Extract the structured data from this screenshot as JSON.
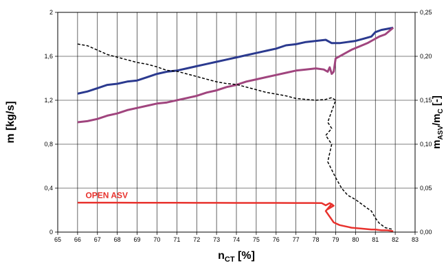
{
  "chart_data": {
    "type": "line",
    "title": "",
    "xlabel": {
      "main": "n",
      "sub": "CT",
      "unit": " [%]"
    },
    "ylabel": "m [kg/s]",
    "y2label": {
      "main": "m",
      "sub": "ASV",
      "mid": "/m",
      "sub2": "C",
      "unit": " [-]"
    },
    "xlim": [
      65,
      83
    ],
    "ylim": [
      0,
      2
    ],
    "y2lim": [
      0,
      0.25
    ],
    "x_ticks": [
      "65",
      "66",
      "67",
      "68",
      "69",
      "70",
      "71",
      "72",
      "73",
      "74",
      "75",
      "76",
      "77",
      "78",
      "79",
      "80",
      "81",
      "82",
      "83"
    ],
    "y_ticks": [
      "0",
      "0,4",
      "0,8",
      "1,2",
      "1,6",
      "2"
    ],
    "y_tick_values": [
      0,
      0.4,
      0.8,
      1.2,
      1.6,
      2
    ],
    "y2_ticks": [
      "0,00",
      "0,05",
      "0,10",
      "0,15",
      "0,20",
      "0,25"
    ],
    "y2_tick_values": [
      0,
      0.05,
      0.1,
      0.15,
      0.2,
      0.25
    ],
    "grid": true,
    "annotations": [
      {
        "text": "OPEN ASV",
        "x": 66.4,
        "y": 0.31,
        "color": "#e8322d"
      }
    ],
    "series": [
      {
        "axis": "left",
        "color": "#2b3a8f",
        "style": "solid",
        "width": 3,
        "x": [
          66.0,
          66.5,
          67.0,
          67.5,
          68.0,
          68.5,
          69.0,
          69.5,
          70.0,
          70.5,
          71.0,
          71.5,
          72.0,
          72.5,
          73.0,
          73.5,
          74.0,
          74.5,
          75.0,
          75.5,
          76.0,
          76.5,
          77.0,
          77.5,
          78.0,
          78.5,
          78.8,
          79.2,
          79.6,
          80.0,
          80.4,
          80.8,
          81.0,
          81.3,
          81.6,
          81.9
        ],
        "y": [
          1.26,
          1.28,
          1.31,
          1.34,
          1.35,
          1.37,
          1.38,
          1.41,
          1.44,
          1.46,
          1.47,
          1.49,
          1.51,
          1.53,
          1.55,
          1.57,
          1.59,
          1.61,
          1.63,
          1.65,
          1.67,
          1.7,
          1.71,
          1.73,
          1.74,
          1.75,
          1.72,
          1.72,
          1.73,
          1.74,
          1.76,
          1.78,
          1.82,
          1.84,
          1.85,
          1.86
        ]
      },
      {
        "axis": "left",
        "color": "#a0457e",
        "style": "solid",
        "width": 3,
        "x": [
          66.0,
          66.5,
          67.0,
          67.5,
          68.0,
          68.5,
          69.0,
          69.5,
          70.0,
          70.5,
          71.0,
          71.5,
          72.0,
          72.5,
          73.0,
          73.5,
          74.0,
          74.5,
          75.0,
          75.5,
          76.0,
          76.5,
          77.0,
          77.5,
          78.0,
          78.4,
          78.6,
          78.7,
          78.8,
          78.9,
          79.0,
          79.4,
          79.8,
          80.2,
          80.6,
          80.9,
          81.2,
          81.5,
          81.9
        ],
        "y": [
          1.0,
          1.01,
          1.03,
          1.06,
          1.08,
          1.11,
          1.13,
          1.15,
          1.17,
          1.18,
          1.2,
          1.22,
          1.24,
          1.27,
          1.29,
          1.32,
          1.34,
          1.37,
          1.39,
          1.41,
          1.43,
          1.45,
          1.47,
          1.48,
          1.49,
          1.48,
          1.46,
          1.5,
          1.44,
          1.46,
          1.58,
          1.62,
          1.66,
          1.69,
          1.72,
          1.75,
          1.78,
          1.8,
          1.86
        ]
      },
      {
        "axis": "right",
        "color": "#e8322d",
        "style": "solid",
        "width": 2.5,
        "x": [
          66.0,
          67.0,
          68.0,
          69.0,
          70.0,
          71.0,
          72.0,
          73.0,
          74.0,
          75.0,
          76.0,
          77.0,
          77.8,
          78.3,
          78.5,
          78.7,
          78.9,
          78.6,
          78.8,
          78.5,
          78.9,
          79.2,
          79.8,
          80.3,
          80.8,
          81.0,
          81.3,
          81.6,
          81.9
        ],
        "y": [
          0.0335,
          0.0335,
          0.0335,
          0.0334,
          0.0334,
          0.0334,
          0.0333,
          0.0333,
          0.0332,
          0.0332,
          0.0332,
          0.0331,
          0.0331,
          0.033,
          0.0305,
          0.033,
          0.03,
          0.026,
          0.032,
          0.024,
          0.011,
          0.008,
          0.005,
          0.004,
          0.003,
          0.003,
          0.002,
          0.002,
          0.001
        ]
      },
      {
        "axis": "right",
        "color": "#000000",
        "style": "dashed",
        "width": 1.5,
        "x": [
          66.0,
          66.5,
          67.0,
          67.5,
          68.0,
          68.5,
          69.0,
          69.5,
          70.0,
          70.5,
          71.0,
          71.5,
          72.0,
          72.5,
          73.0,
          73.5,
          74.0,
          74.5,
          75.0,
          75.5,
          76.0,
          76.5,
          77.0,
          77.5,
          78.0,
          78.5,
          78.8,
          79.0,
          78.6,
          78.8,
          78.5,
          78.8,
          78.6,
          79.0,
          79.3,
          79.6,
          80.0,
          80.3,
          80.6,
          80.8,
          81.0,
          81.2,
          81.5,
          81.9
        ],
        "y": [
          0.214,
          0.212,
          0.207,
          0.202,
          0.199,
          0.196,
          0.193,
          0.191,
          0.188,
          0.184,
          0.183,
          0.18,
          0.177,
          0.174,
          0.171,
          0.169,
          0.168,
          0.165,
          0.162,
          0.159,
          0.157,
          0.155,
          0.152,
          0.151,
          0.15,
          0.151,
          0.153,
          0.15,
          0.125,
          0.118,
          0.11,
          0.1,
          0.08,
          0.062,
          0.05,
          0.042,
          0.037,
          0.032,
          0.027,
          0.024,
          0.016,
          0.01,
          0.005,
          0.003
        ]
      }
    ]
  }
}
